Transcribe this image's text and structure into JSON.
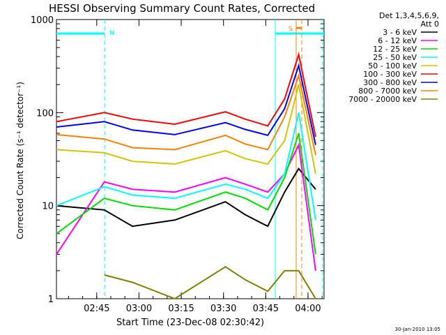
{
  "chart_data": {
    "type": "line",
    "title": "HESSI Observing Summary Count Rates, Corrected",
    "xlabel": "Start Time (23-Dec-08 02:30:42)",
    "ylabel": "Corrected Count Rate (s⁻¹ detector⁻¹)",
    "yscale": "log",
    "ylim": [
      1,
      1000
    ],
    "xlim_minutes": [
      0,
      95
    ],
    "x_ticks": [
      "02:45",
      "03:00",
      "03:15",
      "03:30",
      "03:45",
      "04:00"
    ],
    "y_ticks": [
      "1",
      "10",
      "100",
      "1000"
    ],
    "legend_header": [
      "Det 1,3,4,5,6,9,",
      "Att 0"
    ],
    "legend_position": "right, outside plot",
    "series": [
      {
        "name": "3 - 6 keV",
        "color": "#000000",
        "values": [
          10,
          9,
          6,
          7,
          11,
          8,
          6,
          14,
          25,
          15
        ]
      },
      {
        "name": "6 - 12 keV",
        "color": "#ff00ff",
        "values": [
          3,
          18,
          15,
          14,
          20,
          17,
          14,
          22,
          45,
          2
        ]
      },
      {
        "name": "12 - 25 keV",
        "color": "#00dd00",
        "values": [
          5,
          12,
          10,
          9,
          14,
          12,
          9,
          20,
          60,
          3
        ]
      },
      {
        "name": "25 - 50 keV",
        "color": "#00ffff",
        "values": [
          10,
          16,
          13,
          12,
          17,
          15,
          12,
          22,
          100,
          7
        ]
      },
      {
        "name": "50 - 100 keV",
        "color": "#d4c400",
        "values": [
          40,
          37,
          30,
          28,
          39,
          32,
          28,
          50,
          200,
          22
        ]
      },
      {
        "name": "100 - 300 keV",
        "color": "#ff0000",
        "values": [
          80,
          100,
          85,
          75,
          102,
          85,
          72,
          140,
          420,
          55
        ]
      },
      {
        "name": "300 - 800 keV",
        "color": "#0000ff",
        "values": [
          70,
          80,
          65,
          58,
          78,
          66,
          57,
          110,
          320,
          45
        ]
      },
      {
        "name": "800 - 7000 keV",
        "color": "#ff7f00",
        "values": [
          58,
          52,
          42,
          40,
          57,
          46,
          40,
          90,
          250,
          35
        ]
      },
      {
        "name": "7000 - 20000 keV",
        "color": "#808000",
        "values": [
          null,
          1.8,
          1.5,
          1,
          2.2,
          1.6,
          1.2,
          2,
          2,
          1
        ]
      }
    ],
    "x_points_minutes": [
      0,
      17,
      27,
      42,
      60,
      67,
      75,
      81,
      86,
      92
    ],
    "flag_bars": [
      {
        "label": "N",
        "color": "#00ffff"
      },
      {
        "label": "S",
        "color": "#ff7f00"
      }
    ]
  },
  "footer": {
    "timestamp": "30-Jan-2010 13:05"
  }
}
